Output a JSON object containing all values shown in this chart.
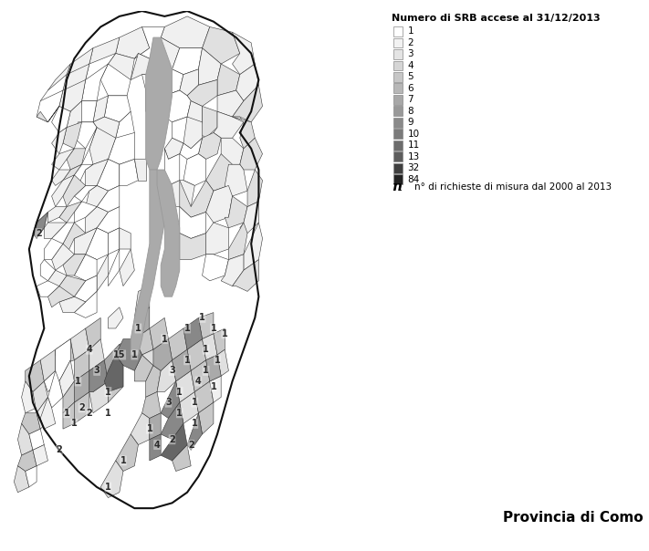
{
  "legend_title": "Numero di SRB accese al 31/12/2013",
  "legend_values": [
    1,
    2,
    3,
    4,
    5,
    6,
    7,
    8,
    9,
    10,
    11,
    13,
    32,
    84
  ],
  "legend_colors": [
    "#ffffff",
    "#f2f2f2",
    "#e4e4e4",
    "#d5d5d5",
    "#c6c6c6",
    "#b7b7b7",
    "#a8a8a8",
    "#999999",
    "#8a8a8a",
    "#7b7b7b",
    "#6c6c6c",
    "#5d5d5d",
    "#3f3f3f",
    "#222222"
  ],
  "note_text": "n° di richieste di misura dal 2000 al 2013",
  "bottom_label": "Provincia di Como",
  "background_color": "#ffffff"
}
